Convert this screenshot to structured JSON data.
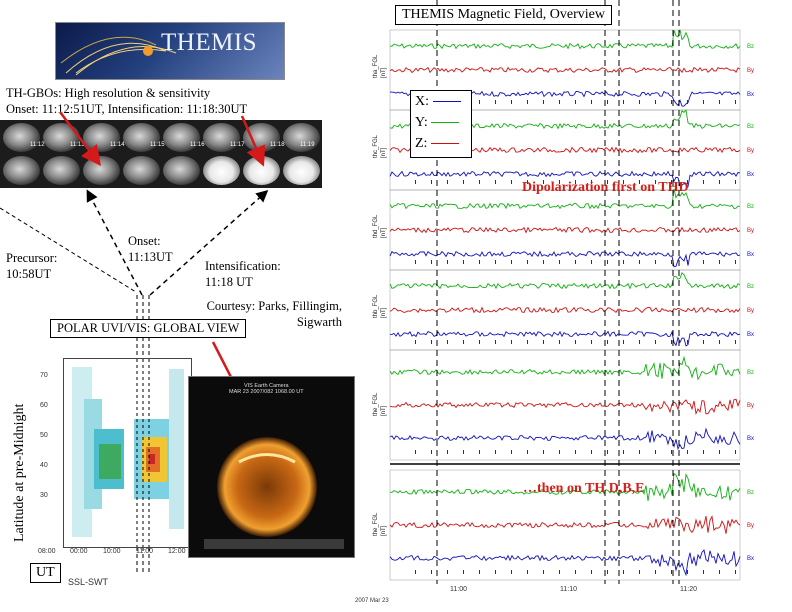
{
  "logo": {
    "text": "THEMIS"
  },
  "gbo_caption": {
    "line1": "TH-GBOs: High resolution & sensitivity",
    "line2": "Onset: 11:12:51UT, Intensification: 11:18:30UT"
  },
  "gbo_cell_times": [
    "11:12",
    "11:13",
    "11:14",
    "11:15",
    "11:16",
    "11:17",
    "11:18",
    "11:19"
  ],
  "precursor": {
    "line1": "Precursor:",
    "line2": "10:58UT"
  },
  "onset": {
    "line1": "Onset:",
    "line2": "11:13UT"
  },
  "intensification": {
    "line1": "Intensification:",
    "line2": "11:18 UT"
  },
  "courtesy": {
    "line1": "Courtesy: Parks, Fillingim,",
    "line2": "Sigwarth"
  },
  "polar_title": "POLAR UVI/VIS: GLOBAL VIEW",
  "polar_ylabel": "Latitude at pre-Midnight",
  "polar_xticks": [
    "08:00",
    "00:00",
    "10:00",
    "11:00",
    "12:00"
  ],
  "polar_yticks": [
    "70",
    "60",
    "50",
    "40",
    "30"
  ],
  "polar_image_title": {
    "line1": "VIS Earth Camera",
    "line2": "MAR 23 2007/082 1068.00 UT"
  },
  "ut_label": "UT",
  "ssl_label": "SSL-SWT",
  "mag_title": "THEMIS Magnetic Field, Overview",
  "legend": {
    "x": "X:",
    "y": "Y:",
    "z": "Z:"
  },
  "annotation_thd": "Dipolarization first on THD",
  "annotation_tdbe": "…then on TH D,B,E",
  "panel_ylabels": [
    "tha_FGL",
    "thc_FGL",
    "thd_FGL",
    "thb_FGL",
    "the_FGL",
    "the_FGL"
  ],
  "unit_label": "[nT]",
  "channel_labels": [
    "Bx",
    "By",
    "Bz"
  ],
  "time_axis": {
    "ticks": [
      "11:00",
      "11:10",
      "11:20"
    ],
    "date": "2007 Mar 23"
  },
  "colors": {
    "x": "#1010c0",
    "y": "#10b010",
    "z": "#d01010",
    "annotation": "#d4201a"
  }
}
